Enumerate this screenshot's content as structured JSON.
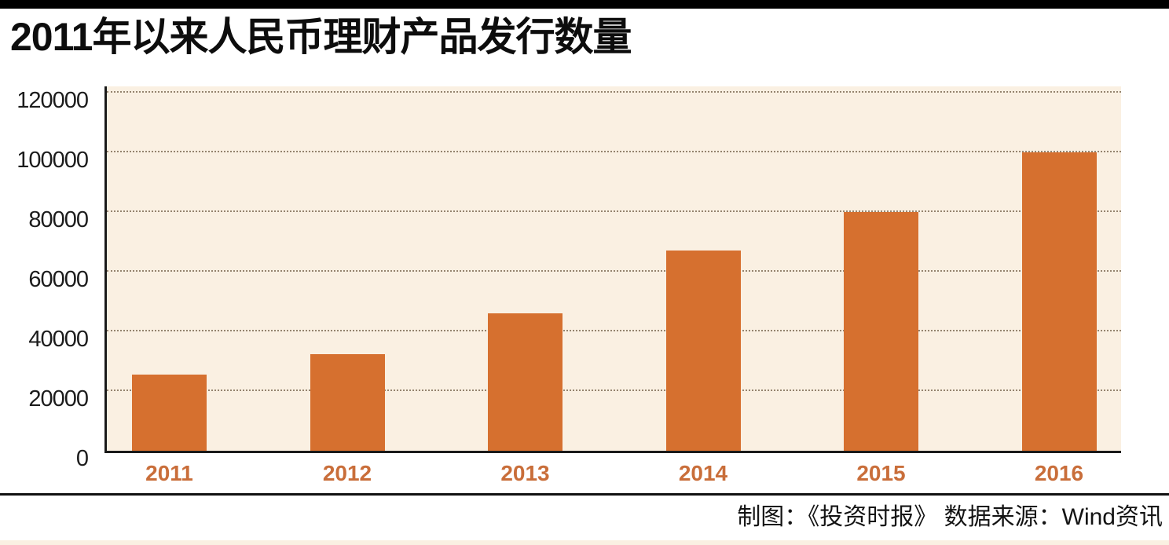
{
  "title": "2011年以来人民币理财产品发行数量",
  "footer": {
    "credit": "制图：《投资时报》  数据来源：Wind资讯"
  },
  "colors": {
    "bar": "#d6702f",
    "plot_background": "#faf0e2",
    "category_label": "#c96e3a",
    "gridline": "#95846f",
    "accent_bar": "#000000"
  },
  "chart_data": {
    "type": "bar",
    "title": "2011年以来人民币理财产品发行数量",
    "categories": [
      "2011",
      "2012",
      "2013",
      "2014",
      "2015",
      "2016"
    ],
    "values": [
      25500,
      32500,
      46000,
      67000,
      80000,
      100000
    ],
    "xlabel": "",
    "ylabel": "",
    "ylim": [
      0,
      120000
    ],
    "yticks": [
      0,
      20000,
      40000,
      60000,
      80000,
      100000,
      120000
    ],
    "grid": "horizontal-dotted",
    "legend": "none",
    "source": "数据来源：Wind资讯",
    "credit": "制图：《投资时报》"
  }
}
